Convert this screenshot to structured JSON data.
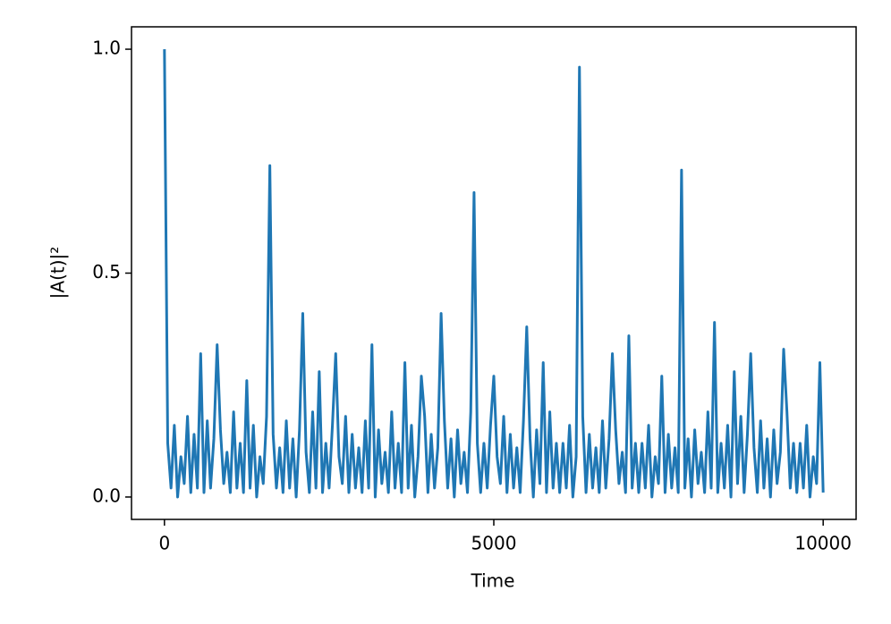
{
  "chart_data": {
    "type": "line",
    "xlabel": "Time",
    "ylabel": "|A(t)|²",
    "color": "#1f77b4",
    "xlim": [
      -500,
      10500
    ],
    "ylim": [
      -0.05,
      1.05
    ],
    "xticks": [
      0,
      5000,
      10000
    ],
    "yticks": [
      {
        "value": 0,
        "label": "0.0"
      },
      {
        "value": 0.5,
        "label": "0.5"
      },
      {
        "value": 1,
        "label": "1.0"
      }
    ],
    "grid": false,
    "x": [
      0,
      50,
      100,
      150,
      200,
      250,
      300,
      350,
      400,
      450,
      500,
      550,
      600,
      650,
      700,
      750,
      800,
      850,
      900,
      950,
      1000,
      1050,
      1100,
      1150,
      1200,
      1250,
      1300,
      1350,
      1400,
      1450,
      1500,
      1550,
      1600,
      1650,
      1700,
      1750,
      1800,
      1850,
      1900,
      1950,
      2000,
      2050,
      2100,
      2150,
      2200,
      2250,
      2300,
      2350,
      2400,
      2450,
      2500,
      2550,
      2600,
      2650,
      2700,
      2750,
      2800,
      2850,
      2900,
      2950,
      3000,
      3050,
      3100,
      3150,
      3200,
      3250,
      3300,
      3350,
      3400,
      3450,
      3500,
      3550,
      3600,
      3650,
      3700,
      3750,
      3800,
      3850,
      3900,
      3950,
      4000,
      4050,
      4100,
      4150,
      4200,
      4250,
      4300,
      4350,
      4400,
      4450,
      4500,
      4550,
      4600,
      4650,
      4700,
      4750,
      4800,
      4850,
      4900,
      4950,
      5000,
      5050,
      5100,
      5150,
      5200,
      5250,
      5300,
      5350,
      5400,
      5450,
      5500,
      5550,
      5600,
      5650,
      5700,
      5750,
      5800,
      5850,
      5900,
      5950,
      6000,
      6050,
      6100,
      6150,
      6200,
      6250,
      6300,
      6350,
      6400,
      6450,
      6500,
      6550,
      6600,
      6650,
      6700,
      6750,
      6800,
      6850,
      6900,
      6950,
      7000,
      7050,
      7100,
      7150,
      7200,
      7250,
      7300,
      7350,
      7400,
      7450,
      7500,
      7550,
      7600,
      7650,
      7700,
      7750,
      7800,
      7850,
      7900,
      7950,
      8000,
      8050,
      8100,
      8150,
      8200,
      8250,
      8300,
      8350,
      8400,
      8450,
      8500,
      8550,
      8600,
      8650,
      8700,
      8750,
      8800,
      8850,
      8900,
      8950,
      9000,
      9050,
      9100,
      9150,
      9200,
      9250,
      9300,
      9350,
      9400,
      9450,
      9500,
      9550,
      9600,
      9650,
      9700,
      9750,
      9800,
      9850,
      9900,
      9950,
      10000
    ],
    "values": [
      1.0,
      0.12,
      0.02,
      0.16,
      0,
      0.09,
      0.03,
      0.18,
      0.01,
      0.14,
      0.02,
      0.32,
      0.01,
      0.17,
      0.02,
      0.13,
      0.34,
      0.15,
      0.03,
      0.1,
      0.01,
      0.19,
      0.02,
      0.12,
      0.01,
      0.26,
      0.02,
      0.16,
      0,
      0.09,
      0.03,
      0.18,
      0.74,
      0.14,
      0.02,
      0.11,
      0.01,
      0.17,
      0.02,
      0.13,
      0,
      0.15,
      0.41,
      0.1,
      0.01,
      0.19,
      0.02,
      0.28,
      0.01,
      0.12,
      0.02,
      0.16,
      0.32,
      0.09,
      0.03,
      0.18,
      0.01,
      0.14,
      0.02,
      0.11,
      0.01,
      0.17,
      0.02,
      0.34,
      0,
      0.15,
      0.03,
      0.1,
      0.01,
      0.19,
      0.02,
      0.12,
      0.01,
      0.3,
      0.02,
      0.16,
      0,
      0.09,
      0.27,
      0.18,
      0.01,
      0.14,
      0.02,
      0.11,
      0.41,
      0.17,
      0.02,
      0.13,
      0,
      0.15,
      0.03,
      0.1,
      0.01,
      0.19,
      0.68,
      0.12,
      0.01,
      0.12,
      0.02,
      0.16,
      0.27,
      0.09,
      0.03,
      0.18,
      0.01,
      0.14,
      0.02,
      0.11,
      0.01,
      0.17,
      0.38,
      0.13,
      0,
      0.15,
      0.03,
      0.3,
      0.01,
      0.19,
      0.02,
      0.12,
      0.01,
      0.12,
      0.02,
      0.16,
      0,
      0.09,
      0.96,
      0.18,
      0.01,
      0.14,
      0.02,
      0.11,
      0.01,
      0.17,
      0.02,
      0.13,
      0.32,
      0.15,
      0.03,
      0.1,
      0.01,
      0.36,
      0.02,
      0.12,
      0.01,
      0.12,
      0.02,
      0.16,
      0,
      0.09,
      0.03,
      0.27,
      0.01,
      0.14,
      0.02,
      0.11,
      0.01,
      0.73,
      0.02,
      0.13,
      0,
      0.15,
      0.03,
      0.1,
      0.01,
      0.19,
      0.02,
      0.39,
      0.01,
      0.12,
      0.02,
      0.16,
      0,
      0.28,
      0.03,
      0.18,
      0.01,
      0.14,
      0.32,
      0.11,
      0.01,
      0.17,
      0.02,
      0.13,
      0,
      0.15,
      0.03,
      0.1,
      0.33,
      0.19,
      0.02,
      0.12,
      0.01,
      0.12,
      0.02,
      0.16,
      0,
      0.09,
      0.03,
      0.3,
      0.01
    ]
  }
}
